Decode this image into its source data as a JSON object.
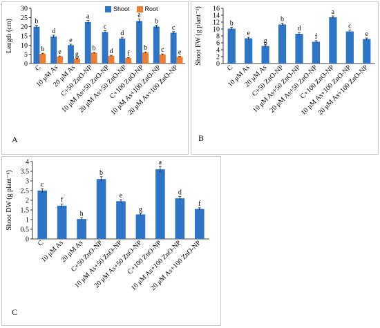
{
  "chart_data": [
    {
      "id": "A",
      "type": "bar",
      "panel_label": "A",
      "categories": [
        "C",
        "10 μM As",
        "20 μM As",
        "C+50 ZnO-NP",
        "10 μM As+50 ZnO-NP",
        "20 μM As+50 ZnO-NP",
        "C+100 ZnO-NP",
        "10 μM As+100 ZnO-NP",
        "20 μM As+100 ZnO-NP"
      ],
      "series": [
        {
          "name": "Shoot",
          "color": "#2e75c7",
          "values": [
            20.0,
            14.7,
            10.0,
            22.5,
            17.1,
            13.6,
            23.1,
            20.1,
            16.7
          ],
          "errors": [
            0.8,
            0.7,
            0.5,
            0.9,
            0.7,
            0.6,
            1.0,
            0.8,
            0.6
          ],
          "letters": [
            "b",
            "d",
            "e",
            "a",
            "c",
            "d",
            "a",
            "b",
            "c"
          ]
        },
        {
          "name": "Root",
          "color": "#ed7d31",
          "values": [
            5.3,
            3.8,
            2.7,
            5.8,
            4.2,
            3.0,
            6.0,
            4.9,
            3.7
          ],
          "errors": [
            0.3,
            0.3,
            0.2,
            0.3,
            0.3,
            0.2,
            0.3,
            0.3,
            0.2
          ],
          "letters": [
            "b",
            "e",
            "g",
            "b",
            "d",
            "f",
            "b",
            "c",
            "e"
          ]
        }
      ],
      "ylabel": "Length (cm)",
      "ylim": [
        0,
        30
      ],
      "yticks": [
        0,
        5,
        10,
        15,
        20,
        25,
        30
      ],
      "legend_position": "top-right",
      "grid": false
    },
    {
      "id": "B",
      "type": "bar",
      "panel_label": "B",
      "categories": [
        "C",
        "10 μM As",
        "20 μM As",
        "C+50 ZnO-NP",
        "10 μM As+50 ZnO-NP",
        "20 μM As+50 ZnO-NP",
        "C+100 ZnO-NP",
        "10 μM As+100 ZnO-NP",
        "20 μM As+100 ZnO-NP"
      ],
      "series": [
        {
          "color": "#2e75c7",
          "values": [
            10.1,
            7.3,
            5.1,
            11.3,
            8.6,
            6.3,
            13.4,
            9.3,
            7.1
          ],
          "errors": [
            0.4,
            0.3,
            0.3,
            0.4,
            0.4,
            0.3,
            0.4,
            0.4,
            0.3
          ],
          "letters": [
            "b",
            "e",
            "g",
            "b",
            "d",
            "f",
            "a",
            "c",
            "e"
          ]
        }
      ],
      "ylabel": "Shoot FW (g plant⁻¹)",
      "ylim": [
        0,
        16
      ],
      "yticks": [
        0,
        2,
        4,
        6,
        8,
        10,
        12,
        14,
        16
      ],
      "grid": false
    },
    {
      "id": "C",
      "type": "bar",
      "panel_label": "C",
      "categories": [
        "C",
        "10 μM As",
        "20 μM As",
        "C+50 ZnO-NP",
        "10 μM As+50 ZnO-NP",
        "20 μM As+50 ZnO-NP",
        "C+100 ZnO-NP",
        "10 μM As+100 ZnO-NP",
        "20 μM As+100 ZnO-NP"
      ],
      "series": [
        {
          "color": "#2e75c7",
          "values": [
            2.5,
            1.72,
            1.03,
            3.1,
            1.95,
            1.27,
            3.6,
            2.1,
            1.55
          ],
          "errors": [
            0.1,
            0.08,
            0.06,
            0.12,
            0.08,
            0.06,
            0.15,
            0.09,
            0.06
          ],
          "letters": [
            "c",
            "f",
            "h",
            "b",
            "e",
            "g",
            "a",
            "d",
            "f"
          ]
        }
      ],
      "ylabel": "Shoot DW (g plant⁻¹)",
      "ylim": [
        0,
        4
      ],
      "yticks": [
        0,
        0.5,
        1,
        1.5,
        2,
        2.5,
        3,
        3.5,
        4
      ],
      "grid": false
    }
  ]
}
